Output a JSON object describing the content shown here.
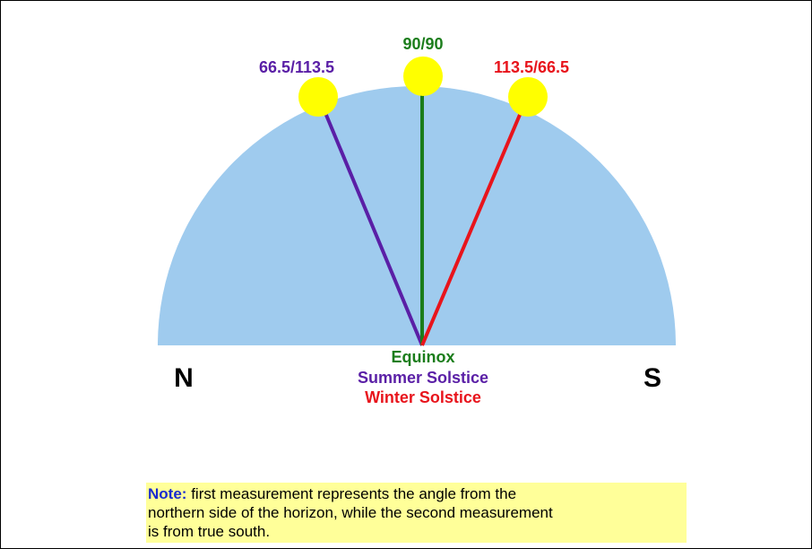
{
  "angles": [
    {
      "label": "66.5/113.5",
      "color": "#5a1fa6"
    },
    {
      "label": "90/90",
      "color": "#1b7d1b"
    },
    {
      "label": "113.5/66.5",
      "color": "#e8141c"
    }
  ],
  "directions": {
    "north": "N",
    "south": "S"
  },
  "legend": [
    {
      "label": "Equinox",
      "color": "#1b7d1b"
    },
    {
      "label": "Summer Solstice",
      "color": "#5a1fa6"
    },
    {
      "label": "Winter Solstice",
      "color": "#e8141c"
    }
  ],
  "note": {
    "heading": "Note:",
    "lines": [
      "first measurement represents the angle from the",
      "northern side of the horizon, while the second measurement",
      "is from true south."
    ]
  }
}
